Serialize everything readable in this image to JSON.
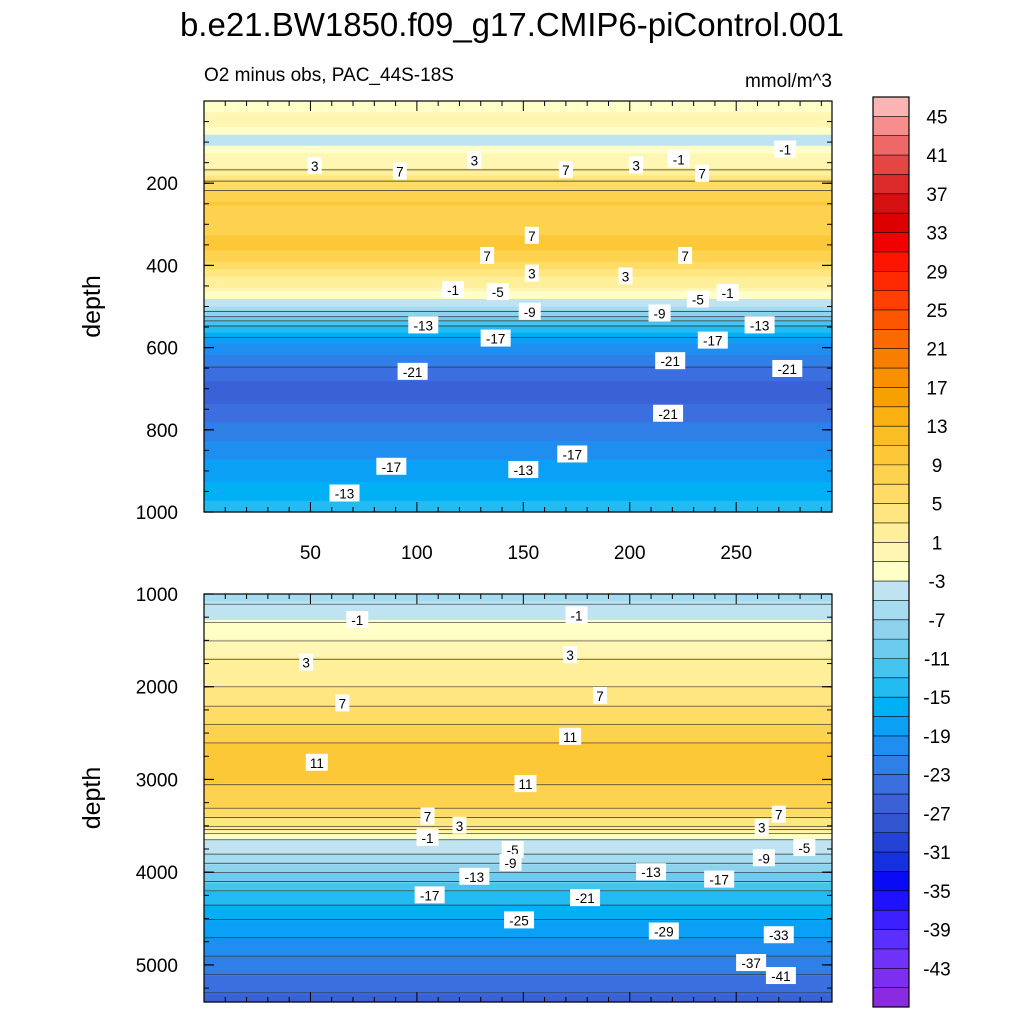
{
  "chart_data": {
    "type": "heatmap",
    "title": "b.e21.BW1850.f09_g17.CMIP6-piControl.001",
    "subtitle_left": "O2 minus obs, PAC_44S-18S",
    "subtitle_right": "mmol/m^3",
    "x_ticks": [
      50,
      100,
      150,
      200,
      250
    ],
    "xlim": [
      0,
      295
    ],
    "colorbar": {
      "levels": [
        -45,
        -43,
        -41,
        -39,
        -37,
        -35,
        -33,
        -31,
        -29,
        -27,
        -25,
        -23,
        -21,
        -19,
        -17,
        -15,
        -13,
        -11,
        -9,
        -7,
        -5,
        -3,
        -1,
        1,
        3,
        5,
        7,
        9,
        11,
        13,
        15,
        17,
        19,
        21,
        23,
        25,
        27,
        29,
        31,
        33,
        35,
        37,
        39,
        41,
        43,
        45,
        47
      ],
      "tick_labels": [
        "45",
        "41",
        "37",
        "33",
        "29",
        "25",
        "21",
        "17",
        "13",
        "9",
        "5",
        "1",
        "-3",
        "-7",
        "-11",
        "-15",
        "-19",
        "-23",
        "-27",
        "-31",
        "-35",
        "-39",
        "-43"
      ],
      "colors": [
        "#8a2be2",
        "#7d2ff0",
        "#6e32f8",
        "#5a2fff",
        "#3b1fff",
        "#1e12ff",
        "#0a0af5",
        "#1530e0",
        "#2442d4",
        "#3355cf",
        "#3a62d6",
        "#3b6fe0",
        "#2f7fe8",
        "#1e8ef0",
        "#0aa0f5",
        "#00b0f5",
        "#22bbf2",
        "#45c4f0",
        "#6ccbee",
        "#8dd3ee",
        "#a6dcef",
        "#bfe3f0",
        "#ffffc8",
        "#fff6b4",
        "#ffef9a",
        "#ffe680",
        "#fedc66",
        "#fdd24e",
        "#fcc838",
        "#fbbd24",
        "#f9b010",
        "#f8a000",
        "#f89000",
        "#f87e00",
        "#fa6a00",
        "#fc5500",
        "#ff4000",
        "#ff2a00",
        "#ff1400",
        "#f20000",
        "#dc0000",
        "#d41010",
        "#dc2a2a",
        "#e44646",
        "#ee6868",
        "#f68e8e",
        "#fbb4b4"
      ]
    },
    "panels": [
      {
        "name": "upper",
        "ylabel": "depth",
        "ylim": [
          0,
          1000
        ],
        "y_ticks": [
          200,
          400,
          600,
          800,
          1000
        ],
        "profile": [
          [
            0,
            0
          ],
          [
            30,
            1
          ],
          [
            60,
            1
          ],
          [
            95,
            -3
          ],
          [
            125,
            1
          ],
          [
            160,
            2
          ],
          [
            200,
            8
          ],
          [
            250,
            11
          ],
          [
            300,
            10
          ],
          [
            350,
            12
          ],
          [
            400,
            8
          ],
          [
            450,
            3
          ],
          [
            480,
            -1
          ],
          [
            500,
            -3
          ],
          [
            540,
            -10
          ],
          [
            580,
            -16
          ],
          [
            630,
            -20
          ],
          [
            680,
            -23
          ],
          [
            720,
            -24
          ],
          [
            760,
            -22
          ],
          [
            800,
            -20
          ],
          [
            850,
            -18
          ],
          [
            900,
            -16
          ],
          [
            950,
            -14
          ],
          [
            1000,
            -12
          ]
        ],
        "contour_labels": [
          {
            "x": 52,
            "y": 158,
            "v": "3"
          },
          {
            "x": 127,
            "y": 145,
            "v": "3"
          },
          {
            "x": 203,
            "y": 157,
            "v": "3"
          },
          {
            "x": 223,
            "y": 142,
            "v": "-1"
          },
          {
            "x": 273,
            "y": 118,
            "v": "-1"
          },
          {
            "x": 92,
            "y": 172,
            "v": "7"
          },
          {
            "x": 170,
            "y": 168,
            "v": "7"
          },
          {
            "x": 234,
            "y": 177,
            "v": "7"
          },
          {
            "x": 133,
            "y": 377,
            "v": "7"
          },
          {
            "x": 154,
            "y": 328,
            "v": "7"
          },
          {
            "x": 226,
            "y": 377,
            "v": "7"
          },
          {
            "x": 154,
            "y": 420,
            "v": "3"
          },
          {
            "x": 198,
            "y": 427,
            "v": "3"
          },
          {
            "x": 117,
            "y": 460,
            "v": "-1"
          },
          {
            "x": 138,
            "y": 465,
            "v": "-5"
          },
          {
            "x": 246,
            "y": 467,
            "v": "-1"
          },
          {
            "x": 232,
            "y": 483,
            "v": "-5"
          },
          {
            "x": 153,
            "y": 513,
            "v": "-9"
          },
          {
            "x": 214,
            "y": 517,
            "v": "-9"
          },
          {
            "x": 103,
            "y": 546,
            "v": "-13"
          },
          {
            "x": 261,
            "y": 546,
            "v": "-13"
          },
          {
            "x": 137,
            "y": 578,
            "v": "-17"
          },
          {
            "x": 239,
            "y": 583,
            "v": "-17"
          },
          {
            "x": 98,
            "y": 659,
            "v": "-21"
          },
          {
            "x": 219,
            "y": 633,
            "v": "-21"
          },
          {
            "x": 274,
            "y": 652,
            "v": "-21"
          },
          {
            "x": 218,
            "y": 761,
            "v": "-21"
          },
          {
            "x": 88,
            "y": 890,
            "v": "-17"
          },
          {
            "x": 173,
            "y": 860,
            "v": "-17"
          },
          {
            "x": 66,
            "y": 955,
            "v": "-13"
          },
          {
            "x": 150,
            "y": 898,
            "v": "-13"
          }
        ]
      },
      {
        "name": "lower",
        "ylabel": "depth",
        "ylim": [
          1000,
          5400
        ],
        "y_ticks": [
          1000,
          2000,
          3000,
          4000,
          5000
        ],
        "profile": [
          [
            1000,
            -5
          ],
          [
            1100,
            -3
          ],
          [
            1300,
            -1
          ],
          [
            1500,
            1
          ],
          [
            1700,
            3
          ],
          [
            2000,
            5
          ],
          [
            2200,
            7
          ],
          [
            2400,
            9
          ],
          [
            2600,
            11
          ],
          [
            2850,
            12
          ],
          [
            3050,
            11
          ],
          [
            3300,
            9
          ],
          [
            3500,
            5
          ],
          [
            3580,
            1
          ],
          [
            3650,
            -1
          ],
          [
            3800,
            -3
          ],
          [
            4000,
            -7
          ],
          [
            4200,
            -11
          ],
          [
            4500,
            -15
          ],
          [
            4800,
            -18
          ],
          [
            5100,
            -21
          ],
          [
            5400,
            -24
          ]
        ],
        "contour_labels": [
          {
            "x": 72,
            "y": 1280,
            "v": "-1"
          },
          {
            "x": 175,
            "y": 1230,
            "v": "-1"
          },
          {
            "x": 48,
            "y": 1740,
            "v": "3"
          },
          {
            "x": 172,
            "y": 1660,
            "v": "3"
          },
          {
            "x": 65,
            "y": 2180,
            "v": "7"
          },
          {
            "x": 186,
            "y": 2100,
            "v": "7"
          },
          {
            "x": 53,
            "y": 2820,
            "v": "11"
          },
          {
            "x": 172,
            "y": 2540,
            "v": "11"
          },
          {
            "x": 151,
            "y": 3050,
            "v": "11"
          },
          {
            "x": 105,
            "y": 3400,
            "v": "7"
          },
          {
            "x": 270,
            "y": 3380,
            "v": "7"
          },
          {
            "x": 120,
            "y": 3500,
            "v": "3"
          },
          {
            "x": 262,
            "y": 3520,
            "v": "3"
          },
          {
            "x": 105,
            "y": 3630,
            "v": "-1"
          },
          {
            "x": 145,
            "y": 3760,
            "v": "-5"
          },
          {
            "x": 282,
            "y": 3740,
            "v": "-5"
          },
          {
            "x": 144,
            "y": 3900,
            "v": "-9"
          },
          {
            "x": 263,
            "y": 3850,
            "v": "-9"
          },
          {
            "x": 127,
            "y": 4050,
            "v": "-13"
          },
          {
            "x": 210,
            "y": 4000,
            "v": "-13"
          },
          {
            "x": 106,
            "y": 4250,
            "v": "-17"
          },
          {
            "x": 242,
            "y": 4080,
            "v": "-17"
          },
          {
            "x": 179,
            "y": 4280,
            "v": "-21"
          },
          {
            "x": 148,
            "y": 4520,
            "v": "-25"
          },
          {
            "x": 216,
            "y": 4640,
            "v": "-29"
          },
          {
            "x": 270,
            "y": 4680,
            "v": "-33"
          },
          {
            "x": 257,
            "y": 4980,
            "v": "-37"
          },
          {
            "x": 271,
            "y": 5120,
            "v": "-41"
          }
        ]
      }
    ]
  }
}
